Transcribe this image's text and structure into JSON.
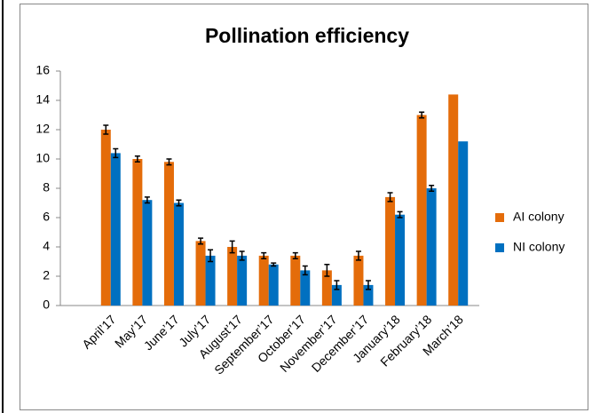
{
  "chart_data": {
    "type": "bar",
    "title": "Pollination efficiency",
    "categories": [
      "April’17",
      "May’17",
      "June’17",
      "July’17",
      "August’17",
      "September’17",
      "October’17",
      "November’17",
      "December’17",
      "January’18",
      "February’18",
      "March’18"
    ],
    "series": [
      {
        "name": "AI colony",
        "color": "#e46c0a",
        "values": [
          12,
          10,
          9.8,
          4.4,
          4,
          3.4,
          3.4,
          2.4,
          3.4,
          7.4,
          13,
          14.4
        ],
        "errors": [
          0.3,
          0.2,
          0.2,
          0.2,
          0.4,
          0.2,
          0.2,
          0.4,
          0.3,
          0.3,
          0.2,
          null
        ]
      },
      {
        "name": "NI colony",
        "color": "#0070c0",
        "values": [
          10.4,
          7.2,
          7,
          3.4,
          3.4,
          2.8,
          2.4,
          1.4,
          1.4,
          6.2,
          8,
          11.2
        ],
        "errors": [
          0.3,
          0.2,
          0.2,
          0.4,
          0.3,
          0.1,
          0.3,
          0.3,
          0.3,
          0.2,
          0.2,
          null
        ]
      }
    ],
    "ylim": [
      0,
      16
    ],
    "yticks": [
      0,
      2,
      4,
      6,
      8,
      10,
      12,
      14,
      16
    ],
    "grid": false,
    "legend": "right"
  }
}
